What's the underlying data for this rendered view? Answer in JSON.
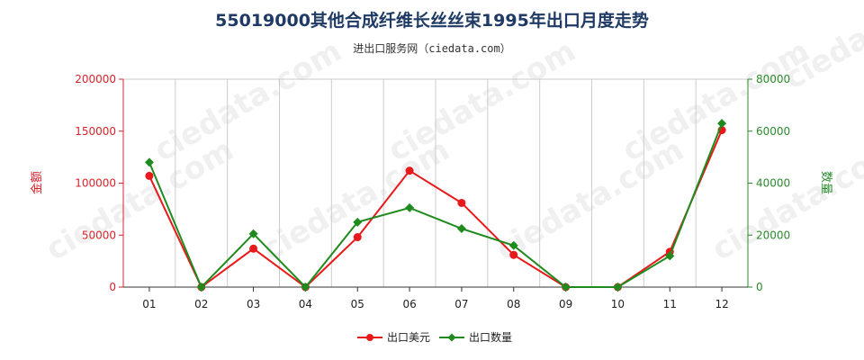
{
  "chart_data": {
    "type": "line",
    "title": "55019000其他合成纤维长丝丝束1995年出口月度走势",
    "subtitle": "进出口服务网（ciedata.com）",
    "categories": [
      "01",
      "02",
      "03",
      "04",
      "05",
      "06",
      "07",
      "08",
      "09",
      "10",
      "11",
      "12"
    ],
    "ylabel_left": "金额",
    "ylabel_right": "数量",
    "ylim_left": [
      0,
      200000
    ],
    "ylim_right": [
      0,
      80000
    ],
    "yticks_left": [
      "0",
      "50000",
      "100000",
      "150000",
      "200000"
    ],
    "yticks_right": [
      "0",
      "20000",
      "40000",
      "60000",
      "80000"
    ],
    "grid": "vertical",
    "legend_position": "bottom",
    "watermark": "ciedata.com",
    "series": [
      {
        "name": "出口美元",
        "axis": "left",
        "color": "#e8191b",
        "values": [
          107000,
          0,
          37000,
          0,
          48000,
          112000,
          81000,
          31000,
          0,
          0,
          34000,
          151000
        ]
      },
      {
        "name": "出口数量",
        "axis": "right",
        "color": "#1f8b1f",
        "values": [
          48000,
          0,
          20500,
          0,
          25000,
          30500,
          22500,
          16000,
          0,
          0,
          12000,
          63000
        ]
      }
    ]
  }
}
